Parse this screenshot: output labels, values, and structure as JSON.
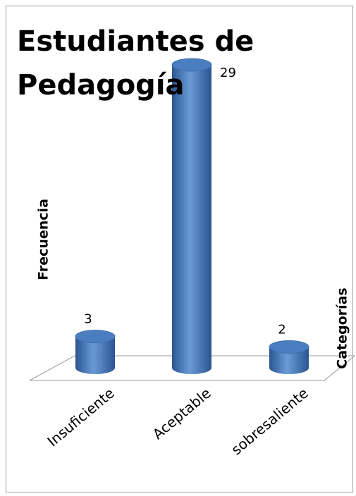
{
  "chart_data": {
    "type": "bar",
    "title": "Estudiantes de Pedagogía",
    "y_label": "Frecuencia",
    "x_label": "Categorías",
    "categories": [
      "Insuficiente",
      "Aceptable",
      "sobresaliente"
    ],
    "values": [
      3,
      29,
      2
    ],
    "color": "#4a7ec0"
  }
}
